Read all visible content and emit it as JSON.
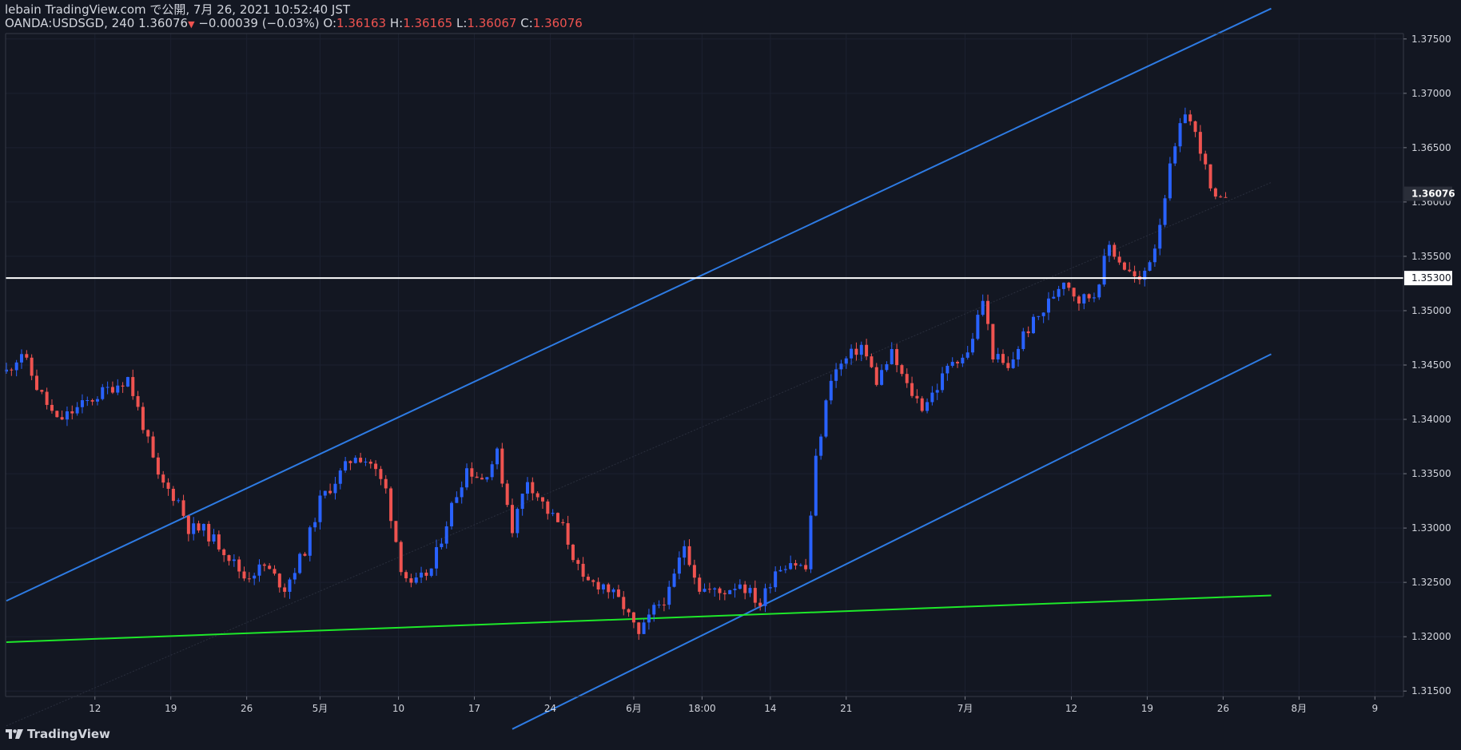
{
  "header": {
    "publisher_line": "lebain TradingView.com で公開, 7月 26, 2021 10:52:40 JST",
    "symbol": "OANDA:USDSGD, 240",
    "last_price": "1.36076",
    "change": "−0.00039 (−0.03%)",
    "o_label": "O:",
    "o_value": "1.36163",
    "h_label": "H:",
    "h_value": "1.36165",
    "l_label": "L:",
    "l_value": "1.36067",
    "c_label": "C:",
    "c_value": "1.36076"
  },
  "footer": {
    "brand": "TradingView"
  },
  "colors": {
    "background": "#131722",
    "up_candle": "#2962ff",
    "down_candle": "#ef5350",
    "channel_line": "#2e7be3",
    "support_line": "#1ee82a",
    "horizontal_line": "#ffffff",
    "text": "#d1d4dc"
  },
  "chart_data": {
    "type": "candlestick",
    "symbol": "OANDA:USDSGD",
    "timeframe": "240",
    "y_range": [
      1.3145,
      1.3755
    ],
    "y_ticks": [
      "1.37500",
      "1.37000",
      "1.36500",
      "1.36000",
      "1.35500",
      "1.35000",
      "1.34500",
      "1.34000",
      "1.33500",
      "1.33000",
      "1.32500",
      "1.32000",
      "1.31500"
    ],
    "x_ticks": [
      {
        "label": "12",
        "i": 17.5
      },
      {
        "label": "19",
        "i": 32.5
      },
      {
        "label": "26",
        "i": 47.5
      },
      {
        "label": "5月",
        "i": 62
      },
      {
        "label": "10",
        "i": 77.5
      },
      {
        "label": "17",
        "i": 92.5
      },
      {
        "label": "24",
        "i": 107.5
      },
      {
        "label": "6月",
        "i": 124
      },
      {
        "label": "18:00",
        "i": 137.5
      },
      {
        "label": "14",
        "i": 151
      },
      {
        "label": "21",
        "i": 166
      },
      {
        "label": "7月",
        "i": 189.5
      },
      {
        "label": "12",
        "i": 210.5
      },
      {
        "label": "19",
        "i": 225.5
      },
      {
        "label": "26",
        "i": 240.5
      },
      {
        "label": "8月",
        "i": 255.5
      },
      {
        "label": "9",
        "i": 270.5
      }
    ],
    "price_label": "1.36076",
    "horizontal_line_value": 1.353,
    "horizontal_line_label": "1.35300",
    "candle_count": 242,
    "path_points": [
      [
        0,
        1.3444
      ],
      [
        3,
        1.3462
      ],
      [
        6,
        1.343
      ],
      [
        10,
        1.3398
      ],
      [
        14,
        1.341
      ],
      [
        19,
        1.3425
      ],
      [
        24,
        1.3438
      ],
      [
        27,
        1.3395
      ],
      [
        30,
        1.3345
      ],
      [
        34,
        1.3325
      ],
      [
        36,
        1.33
      ],
      [
        39,
        1.3298
      ],
      [
        43,
        1.328
      ],
      [
        47,
        1.3255
      ],
      [
        51,
        1.3265
      ],
      [
        55,
        1.3245
      ],
      [
        59,
        1.328
      ],
      [
        62,
        1.3325
      ],
      [
        66,
        1.335
      ],
      [
        69,
        1.3368
      ],
      [
        72,
        1.336
      ],
      [
        75,
        1.3335
      ],
      [
        78,
        1.3265
      ],
      [
        80,
        1.3245
      ],
      [
        84,
        1.3262
      ],
      [
        88,
        1.332
      ],
      [
        91,
        1.3355
      ],
      [
        94,
        1.3345
      ],
      [
        97,
        1.3368
      ],
      [
        100,
        1.33
      ],
      [
        103,
        1.3345
      ],
      [
        107,
        1.3315
      ],
      [
        110,
        1.33
      ],
      [
        114,
        1.325
      ],
      [
        118,
        1.3248
      ],
      [
        122,
        1.3228
      ],
      [
        125,
        1.32
      ],
      [
        128,
        1.3225
      ],
      [
        131,
        1.324
      ],
      [
        134,
        1.3285
      ],
      [
        137,
        1.3245
      ],
      [
        141,
        1.324
      ],
      [
        145,
        1.325
      ],
      [
        149,
        1.323
      ],
      [
        152,
        1.3262
      ],
      [
        155,
        1.327
      ],
      [
        158,
        1.3262
      ],
      [
        160,
        1.3362
      ],
      [
        163,
        1.344
      ],
      [
        166,
        1.3455
      ],
      [
        169,
        1.3468
      ],
      [
        172,
        1.3435
      ],
      [
        175,
        1.346
      ],
      [
        178,
        1.343
      ],
      [
        181,
        1.3412
      ],
      [
        184,
        1.343
      ],
      [
        187,
        1.3455
      ],
      [
        190,
        1.346
      ],
      [
        193,
        1.351
      ],
      [
        195,
        1.346
      ],
      [
        198,
        1.3445
      ],
      [
        201,
        1.3478
      ],
      [
        205,
        1.35
      ],
      [
        209,
        1.353
      ],
      [
        212,
        1.351
      ],
      [
        215,
        1.3515
      ],
      [
        218,
        1.356
      ],
      [
        221,
        1.354
      ],
      [
        224,
        1.3525
      ],
      [
        227,
        1.356
      ],
      [
        230,
        1.363
      ],
      [
        233,
        1.3685
      ],
      [
        236,
        1.365
      ],
      [
        238,
        1.361
      ],
      [
        239.5,
        1.3595
      ],
      [
        241,
        1.3608
      ]
    ],
    "trend_lines": [
      {
        "name": "upper-channel",
        "color": "#2e7be3",
        "from": [
          0,
          1.3233
        ],
        "to": [
          250,
          1.3778
        ]
      },
      {
        "name": "lower-channel",
        "color": "#2e7be3",
        "from": [
          100,
          1.3115
        ],
        "to": [
          250,
          1.346
        ]
      },
      {
        "name": "middle-channel",
        "color": "#2a2f3d",
        "from": [
          0,
          1.3118
        ],
        "to": [
          250,
          1.3618
        ]
      },
      {
        "name": "support",
        "color": "#1ee82a",
        "from": [
          0,
          1.3195
        ],
        "to": [
          250,
          1.3238
        ]
      }
    ]
  }
}
